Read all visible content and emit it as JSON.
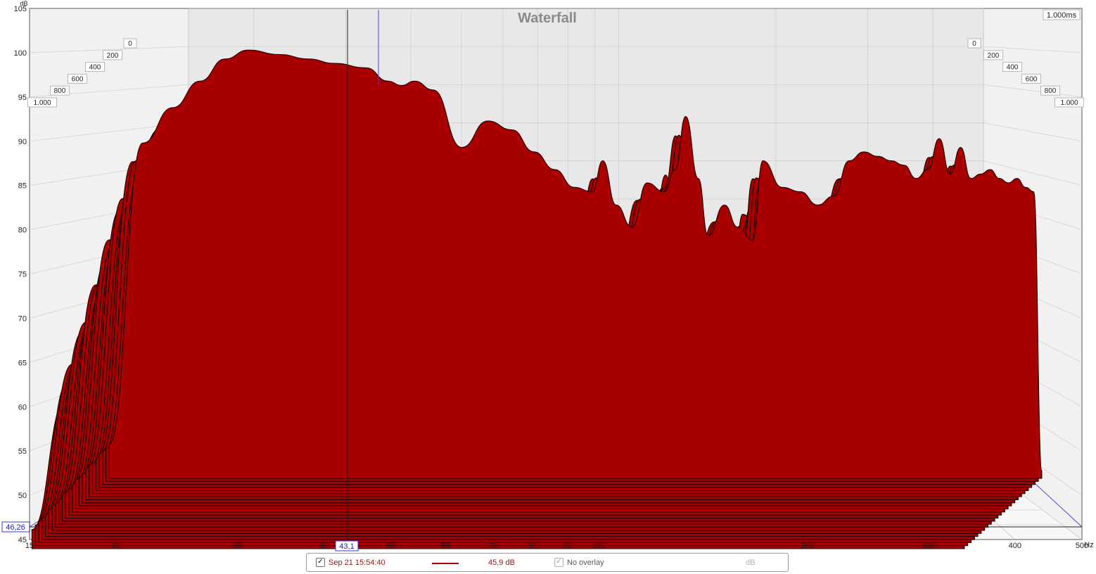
{
  "chart_data": {
    "type": "area",
    "title": "Waterfall",
    "ylabel": "dB",
    "ylim": [
      45,
      105
    ],
    "y_ticks": [
      "45",
      "50",
      "55",
      "60",
      "65",
      "70",
      "75",
      "80",
      "85",
      "90",
      "95",
      "100",
      "105"
    ],
    "xlabel_unit": "Hz",
    "x_scale": "log",
    "xlim": [
      15,
      500
    ],
    "x_ticks": [
      "15",
      "20",
      "30",
      "40",
      "50",
      "60",
      "70",
      "80",
      "90",
      "100",
      "200",
      "300",
      "400",
      "500"
    ],
    "time_ticks_left": [
      "0",
      "200",
      "400",
      "600",
      "800",
      "1.000"
    ],
    "time_ticks_right": [
      "0",
      "200",
      "400",
      "600",
      "800",
      "1.000"
    ],
    "time_window_label": "1.000ms",
    "cursor": {
      "x_readout": "43,1",
      "y_readout": "46,26"
    },
    "fill_color": "#a80000",
    "grid": true,
    "series": [
      {
        "x": [
          17,
          19,
          21,
          23,
          25,
          27,
          30,
          33,
          36,
          40,
          43,
          45,
          47,
          50,
          55,
          60,
          65,
          70,
          75,
          80,
          85,
          88,
          92,
          97,
          102,
          108,
          112,
          116,
          121,
          125,
          132,
          138,
          145,
          150,
          160,
          170,
          180,
          190,
          200,
          210,
          220,
          230,
          240,
          250,
          260,
          270,
          280,
          290,
          300,
          310,
          320,
          330,
          340,
          350,
          360,
          370,
          380
        ],
        "values": [
          55,
          89,
          93,
          96,
          98.5,
          99.5,
          99,
          98.5,
          98,
          97.5,
          96,
          95.5,
          96,
          95,
          88.5,
          91.5,
          90.5,
          88,
          86,
          84,
          83.5,
          87,
          82,
          79.5,
          84.5,
          83.5,
          86,
          92,
          85,
          78.5,
          82,
          79.5,
          78,
          87,
          84,
          83.5,
          82,
          83,
          87,
          88,
          87.5,
          87,
          86.5,
          85,
          86,
          89.5,
          85.5,
          88.5,
          85,
          85.5,
          86,
          85,
          84.5,
          85,
          84,
          83.5,
          52
        ]
      }
    ]
  },
  "legend": {
    "checkbox_mark": "✓",
    "measurement_label": "Sep 21 15:54:40",
    "measurement_value": "45,9 dB",
    "overlay_label": "No overlay",
    "unit_label": "dB"
  }
}
